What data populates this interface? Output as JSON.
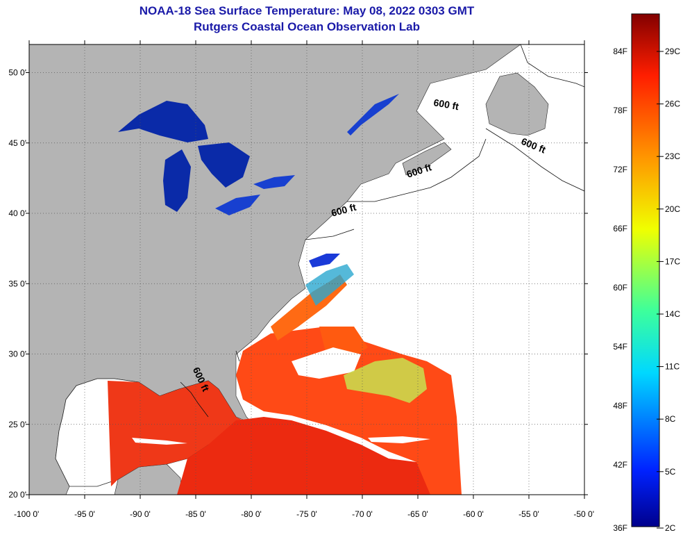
{
  "header": {
    "title": "NOAA-18 Sea Surface Temperature:  May 08, 2022 0303 GMT",
    "subtitle": "Rutgers Coastal Ocean Observation Lab"
  },
  "map": {
    "lon_range": [
      -100,
      -50
    ],
    "lat_range": [
      20,
      52
    ],
    "lat_ticks": [
      {
        "value": 20,
        "label": "20 0'"
      },
      {
        "value": 25,
        "label": "25 0'"
      },
      {
        "value": 30,
        "label": "30 0'"
      },
      {
        "value": 35,
        "label": "35 0'"
      },
      {
        "value": 40,
        "label": "40 0'"
      },
      {
        "value": 45,
        "label": "45 0'"
      },
      {
        "value": 50,
        "label": "50 0'"
      }
    ],
    "lon_ticks": [
      {
        "value": -100,
        "label": "-100 0'"
      },
      {
        "value": -95,
        "label": "-95 0'"
      },
      {
        "value": -90,
        "label": "-90 0'"
      },
      {
        "value": -85,
        "label": "-85 0'"
      },
      {
        "value": -80,
        "label": "-80 0'"
      },
      {
        "value": -75,
        "label": "-75 0'"
      },
      {
        "value": -70,
        "label": "-70 0'"
      },
      {
        "value": -65,
        "label": "-65 0'"
      },
      {
        "value": -60,
        "label": "-60 0'"
      },
      {
        "value": -55,
        "label": "-55 0'"
      },
      {
        "value": -50,
        "label": "-50 0'"
      }
    ],
    "isobath_labels": [
      {
        "text": "600 ft",
        "lon": -62.5,
        "lat": 47.5,
        "rotate": 10
      },
      {
        "text": "600 ft",
        "lon": -54.7,
        "lat": 44.6,
        "rotate": 22
      },
      {
        "text": "600 ft",
        "lon": -64.8,
        "lat": 42.8,
        "rotate": -18
      },
      {
        "text": "600 ft",
        "lon": -71.6,
        "lat": 40.0,
        "rotate": -15
      },
      {
        "text": "600 ft",
        "lon": -84.8,
        "lat": 28.1,
        "rotate": 65
      }
    ],
    "colors": {
      "land": "#b4b4b4",
      "no_data": "#ffffff",
      "lakes": "#0a2aa8",
      "gulf_stream": "#ff5a14"
    }
  },
  "colorbar": {
    "fahrenheit_labels": [
      "84F",
      "78F",
      "72F",
      "66F",
      "60F",
      "54F",
      "48F",
      "42F",
      "36F"
    ],
    "celsius_labels": [
      "29C",
      "26C",
      "23C",
      "20C",
      "17C",
      "14C",
      "11C",
      "8C",
      "5C",
      "2C"
    ],
    "range_c": [
      2,
      31
    ]
  }
}
